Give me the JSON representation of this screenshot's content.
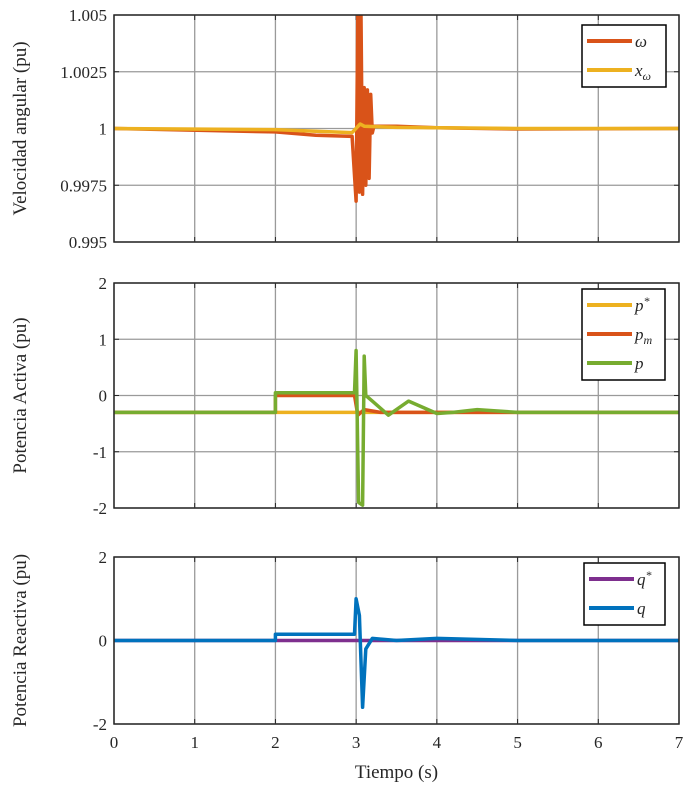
{
  "chart_data": [
    {
      "type": "line",
      "ylabel": "Velocidad angular (pu)",
      "xlim": [
        0,
        7
      ],
      "ylim": [
        0.995,
        1.005
      ],
      "yticks": [
        "1.005",
        "1.0025",
        "1",
        "0.9975",
        "0.995"
      ],
      "ytick_values": [
        1.005,
        1.0025,
        1,
        0.9975,
        0.995
      ],
      "grid": true,
      "legend": "top-right",
      "series": [
        {
          "name": "ω",
          "color": "#D95319",
          "x": [
            0,
            2,
            2.5,
            2.95,
            3.0,
            3.02,
            3.04,
            3.06,
            3.08,
            3.1,
            3.12,
            3.14,
            3.16,
            3.18,
            3.2,
            3.22,
            3.3,
            3.5,
            4,
            5,
            7
          ],
          "y": [
            1,
            0.99985,
            0.9997,
            0.99965,
            0.9968,
            1.005,
            0.9972,
            1.005,
            0.9971,
            1.0018,
            0.9975,
            1.0017,
            0.9978,
            1.0015,
            0.9998,
            1.0001,
            1.0001,
            1.0001,
            1.00003,
            0.99998,
            1
          ]
        },
        {
          "name": "x_ω",
          "color": "#EDB120",
          "x": [
            0,
            2,
            2.5,
            2.95,
            3.05,
            3.1,
            3.5,
            4,
            5,
            7
          ],
          "y": [
            1,
            0.99995,
            0.99988,
            0.99982,
            1.0002,
            1.0001,
            1.00005,
            1.00003,
            1,
            1
          ]
        }
      ]
    },
    {
      "type": "line",
      "ylabel": "Potencia Activa (pu)",
      "xlim": [
        0,
        7
      ],
      "ylim": [
        -2,
        2
      ],
      "yticks": [
        "2",
        "1",
        "0",
        "-1",
        "-2"
      ],
      "ytick_values": [
        2,
        1,
        0,
        -1,
        -2
      ],
      "grid": true,
      "legend": "top-right",
      "series": [
        {
          "name": "p*",
          "color": "#EDB120",
          "x": [
            0,
            7
          ],
          "y": [
            -0.3,
            -0.3
          ]
        },
        {
          "name": "p_m",
          "color": "#D95319",
          "x": [
            0,
            2,
            2,
            2.98,
            3.02,
            3.1,
            3.3,
            7
          ],
          "y": [
            -0.3,
            -0.3,
            0,
            0,
            -0.35,
            -0.25,
            -0.3,
            -0.3
          ]
        },
        {
          "name": "p",
          "color": "#77AC30",
          "x": [
            0,
            2,
            2,
            2.98,
            3.0,
            3.03,
            3.08,
            3.1,
            3.12,
            3.2,
            3.4,
            3.65,
            4.0,
            4.2,
            4.5,
            4.8,
            5.0,
            7
          ],
          "y": [
            -0.3,
            -0.3,
            0.05,
            0.05,
            0.8,
            -1.9,
            -1.95,
            0.7,
            0.0,
            -0.1,
            -0.35,
            -0.1,
            -0.32,
            -0.3,
            -0.25,
            -0.28,
            -0.3,
            -0.3
          ]
        }
      ]
    },
    {
      "type": "line",
      "ylabel": "Potencia Reactiva (pu)",
      "xlabel": "Tiempo (s)",
      "xlim": [
        0,
        7
      ],
      "ylim": [
        -2,
        2
      ],
      "yticks": [
        "2",
        "0",
        "-2"
      ],
      "ytick_values": [
        2,
        0,
        -2
      ],
      "xticks": [
        "0",
        "1",
        "2",
        "3",
        "4",
        "5",
        "6",
        "7"
      ],
      "grid": true,
      "legend": "top-right",
      "series": [
        {
          "name": "q*",
          "color": "#7E2F8E",
          "x": [
            0,
            7
          ],
          "y": [
            0,
            0
          ]
        },
        {
          "name": "q",
          "color": "#0072BD",
          "x": [
            0,
            2,
            2,
            2.98,
            3.0,
            3.04,
            3.08,
            3.12,
            3.2,
            3.5,
            4,
            5,
            7
          ],
          "y": [
            0,
            0,
            0.15,
            0.15,
            1.0,
            0.6,
            -1.6,
            -0.2,
            0.05,
            0,
            0.05,
            0,
            0
          ]
        }
      ]
    }
  ]
}
